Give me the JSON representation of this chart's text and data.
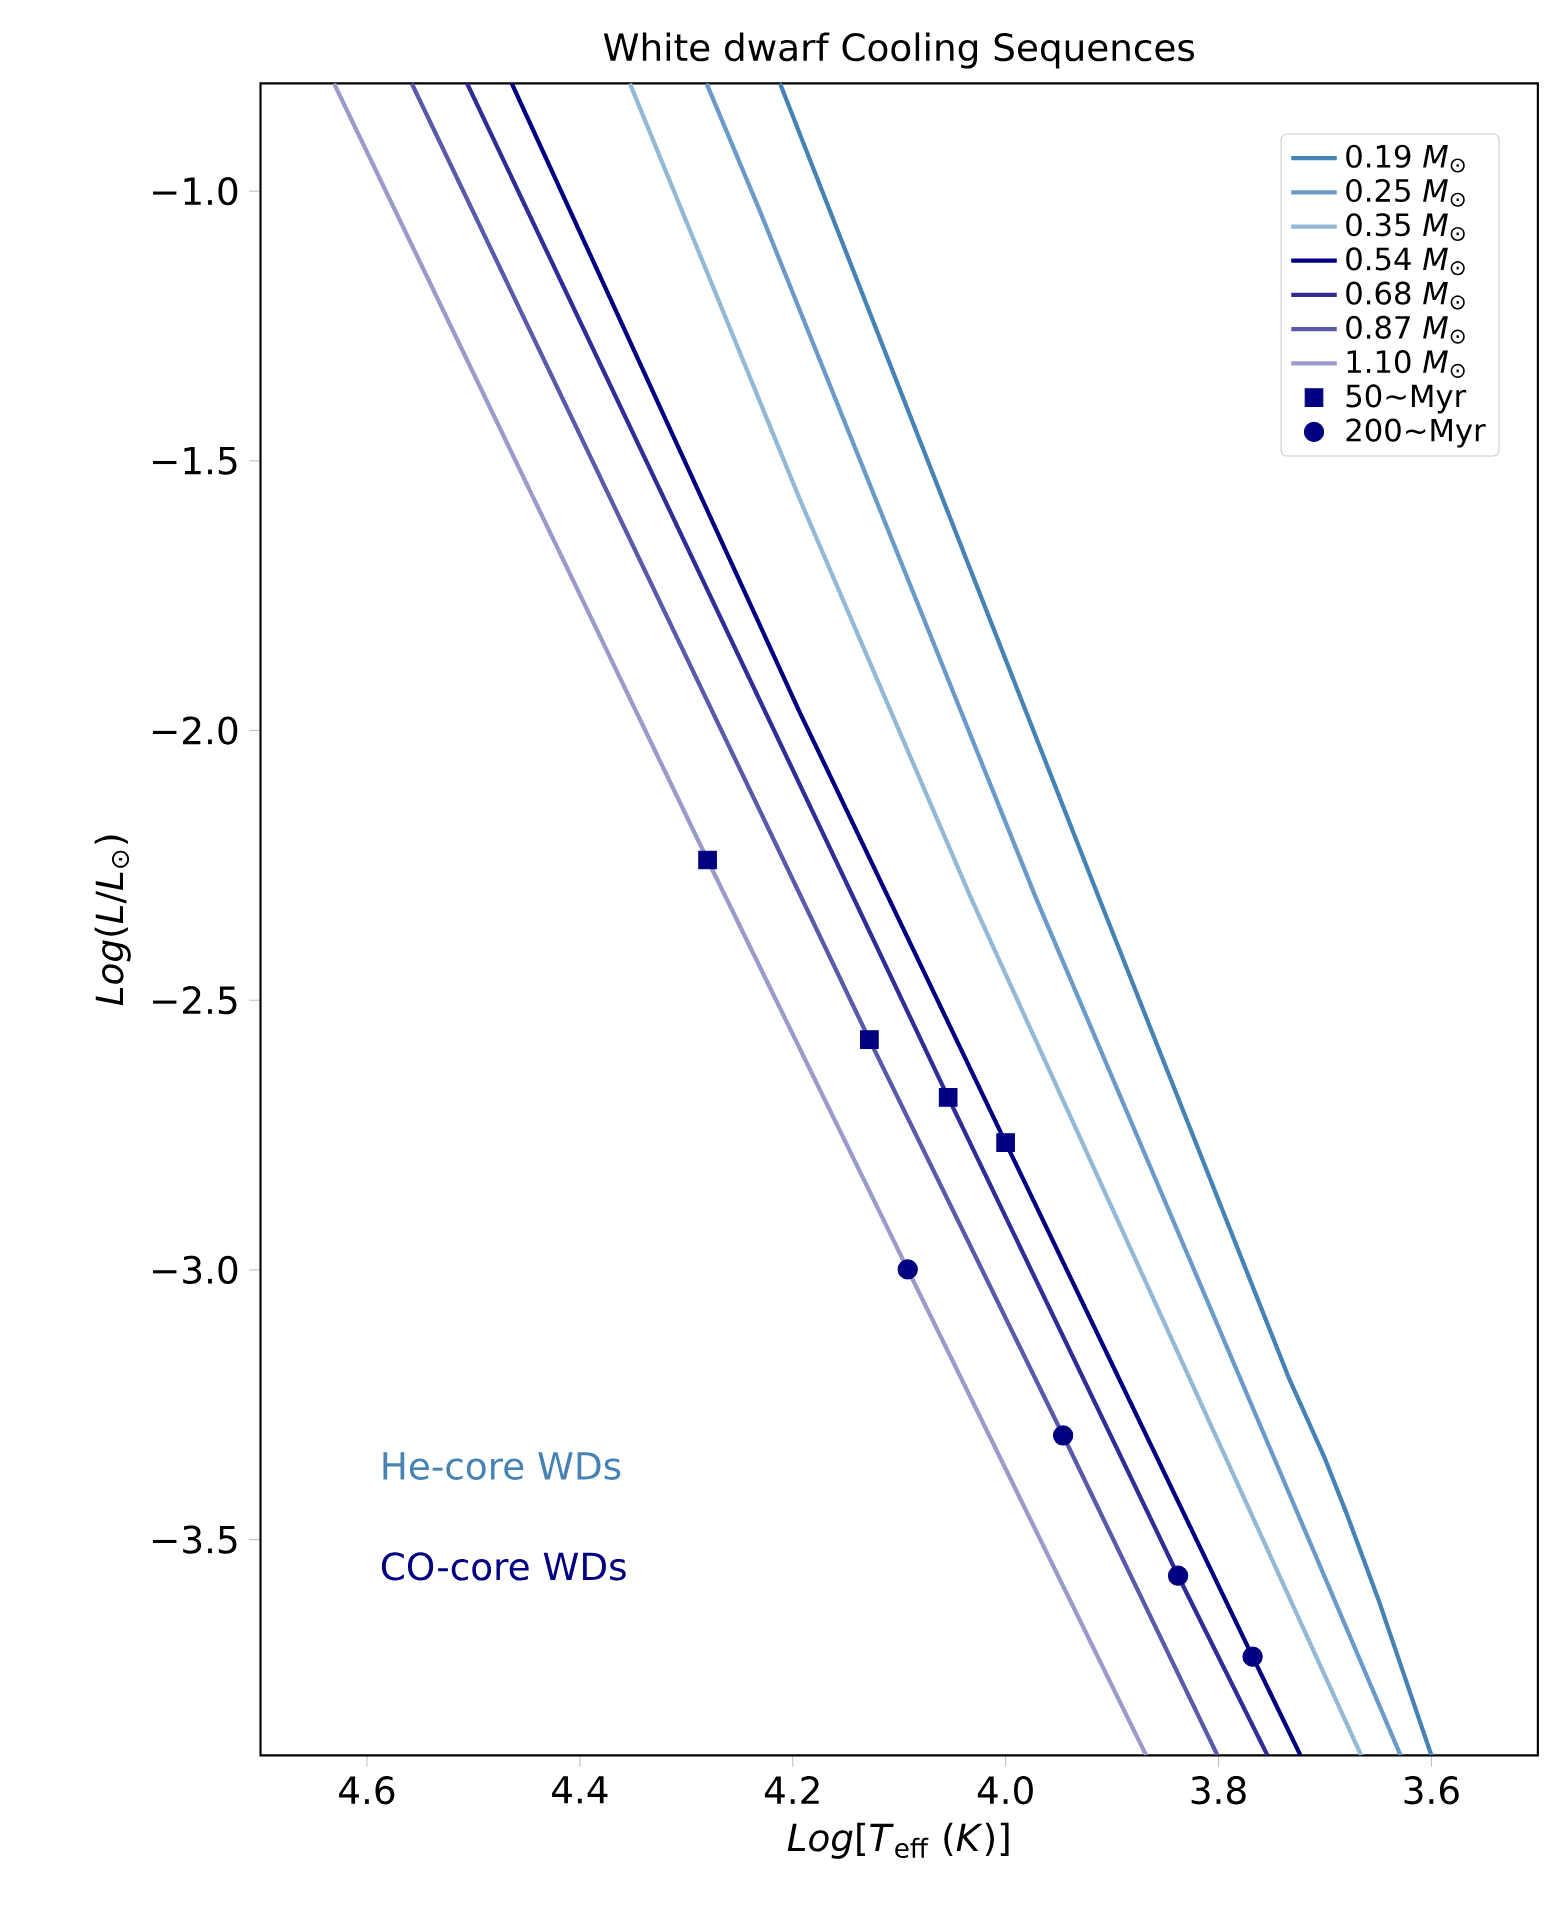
{
  "chart_data": {
    "type": "line",
    "title": "White dwarf Cooling Sequences",
    "xlabel": "*Log*[*T*$_{eff}$ (*K*)]",
    "ylabel": "*Log*(*L*/*L*$_{⊙}$)",
    "xlim": [
      4.7,
      3.5
    ],
    "ylim": [
      -3.9,
      -0.8
    ],
    "xticks": [
      {
        "value": 4.6,
        "label": "4.6"
      },
      {
        "value": 4.4,
        "label": "4.4"
      },
      {
        "value": 4.2,
        "label": "4.2"
      },
      {
        "value": 4.0,
        "label": "4.0"
      },
      {
        "value": 3.8,
        "label": "3.8"
      },
      {
        "value": 3.6,
        "label": "3.6"
      }
    ],
    "yticks": [
      {
        "value": -3.5,
        "label": "−3.5"
      },
      {
        "value": -3.0,
        "label": "−3.0"
      },
      {
        "value": -2.5,
        "label": "−2.5"
      },
      {
        "value": -2.0,
        "label": "−2.0"
      },
      {
        "value": -1.5,
        "label": "−1.5"
      },
      {
        "value": -1.0,
        "label": "−1.0"
      }
    ],
    "legend": "top right",
    "line_style": "solid",
    "annotations": [
      "He-core WDs",
      "CO-core WDs"
    ],
    "series": [
      {
        "name": "0.19 *M*$_{⊙}$",
        "color": "#4682b4",
        "x": [
          4.212,
          3.912,
          3.734,
          3.7,
          3.68,
          3.65,
          3.6
        ],
        "values": [
          -0.8,
          -2.312,
          -3.2,
          -3.35,
          -3.45,
          -3.61,
          -3.9
        ]
      },
      {
        "name": "0.25 *M*$_{⊙}$",
        "color": "#6a9bc8",
        "x": [
          4.281,
          4.231,
          3.971,
          3.629
        ],
        "values": [
          -0.8,
          -1.036,
          -2.313,
          -3.9
        ]
      },
      {
        "name": "0.35 *M*$_{⊙}$",
        "color": "#93b9d6",
        "x": [
          4.353,
          4.193,
          4.032,
          3.666
        ],
        "values": [
          -0.8,
          -1.573,
          -2.313,
          -3.9
        ]
      },
      {
        "name": "0.54 *M*$_{⊙}$",
        "color": "#000080",
        "x": [
          4.464,
          4.193,
          4.0,
          3.768,
          3.723
        ],
        "values": [
          -0.8,
          -1.968,
          -2.764,
          -3.717,
          -3.9
        ]
      },
      {
        "name": "0.68 *M*$_{⊙}$",
        "color": "#2e2e96",
        "x": [
          4.506,
          4.054,
          3.838,
          3.754
        ],
        "values": [
          -0.8,
          -2.68,
          -3.567,
          -3.9
        ]
      },
      {
        "name": "0.87 *M*$_{⊙}$",
        "color": "#5a5aaa",
        "x": [
          4.558,
          4.128,
          3.946,
          3.801
        ],
        "values": [
          -0.8,
          -2.573,
          -3.307,
          -3.9
        ]
      },
      {
        "name": "1.10 *M*$_{⊙}$",
        "color": "#9a9acb",
        "x": [
          4.631,
          4.28,
          4.092,
          3.868
        ],
        "values": [
          -0.8,
          -2.24,
          -2.999,
          -3.9
        ]
      },
      {
        "name": "50~Myr",
        "type": "scatter",
        "marker": "square",
        "color": "#000080",
        "x": [
          4.28,
          4.128,
          4.054,
          4.0
        ],
        "values": [
          -2.24,
          -2.573,
          -2.68,
          -2.764
        ]
      },
      {
        "name": "200~Myr",
        "type": "scatter",
        "marker": "circle",
        "color": "#000080",
        "x": [
          4.092,
          3.946,
          3.838,
          3.768
        ],
        "values": [
          -2.999,
          -3.307,
          -3.567,
          -3.717
        ]
      }
    ]
  }
}
